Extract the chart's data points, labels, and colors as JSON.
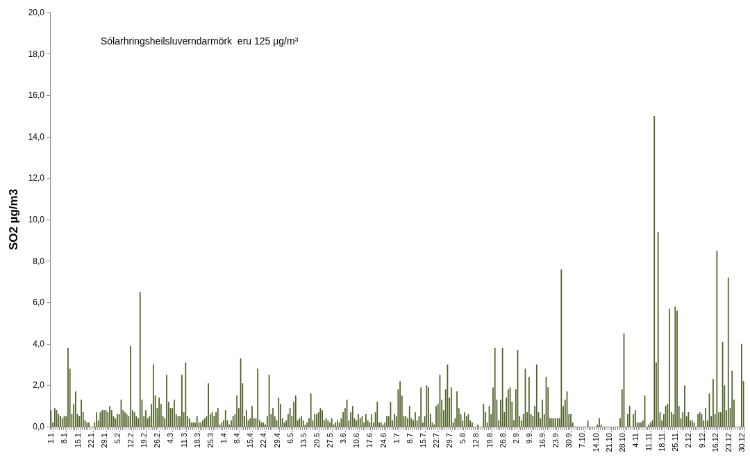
{
  "chart_data": {
    "type": "bar",
    "ylabel": "SO2 µg/m3",
    "annotations": [
      "Sólarhringsheilsluverndarmörk  eru 125 µg/m³"
    ],
    "color": "#4f6228",
    "grid": false,
    "ylim": [
      0,
      20
    ],
    "yticks": [
      {
        "value": 0,
        "label": "0,0"
      },
      {
        "value": 2,
        "label": "2,0"
      },
      {
        "value": 4,
        "label": "4,0"
      },
      {
        "value": 6,
        "label": "6,0"
      },
      {
        "value": 8,
        "label": "8,0"
      },
      {
        "value": 10,
        "label": "10,0"
      },
      {
        "value": 12,
        "label": "12,0"
      },
      {
        "value": 14,
        "label": "14,0"
      },
      {
        "value": 16,
        "label": "16,0"
      },
      {
        "value": 18,
        "label": "18,0"
      },
      {
        "value": 20,
        "label": "20,0"
      }
    ],
    "categories": [
      "1.1.",
      null,
      null,
      null,
      null,
      null,
      null,
      "8.1.",
      null,
      null,
      null,
      null,
      null,
      null,
      "15.1.",
      null,
      null,
      null,
      null,
      null,
      null,
      "22.1.",
      null,
      null,
      null,
      null,
      null,
      null,
      "29.1.",
      null,
      null,
      null,
      null,
      null,
      null,
      "5.2.",
      null,
      null,
      null,
      null,
      null,
      null,
      "12.2.",
      null,
      null,
      null,
      null,
      null,
      null,
      "19.2.",
      null,
      null,
      null,
      null,
      null,
      null,
      "26.2.",
      null,
      null,
      null,
      null,
      null,
      null,
      "4.3.",
      null,
      null,
      null,
      null,
      null,
      null,
      "11.3.",
      null,
      null,
      null,
      null,
      null,
      null,
      "18.3.",
      null,
      null,
      null,
      null,
      null,
      null,
      "25.3.",
      null,
      null,
      null,
      null,
      null,
      null,
      "1.4.",
      null,
      null,
      null,
      null,
      null,
      null,
      "8.4.",
      null,
      null,
      null,
      null,
      null,
      null,
      "15.4.",
      null,
      null,
      null,
      null,
      null,
      null,
      "22.4.",
      null,
      null,
      null,
      null,
      null,
      null,
      "29.4.",
      null,
      null,
      null,
      null,
      null,
      null,
      "6.5.",
      null,
      null,
      null,
      null,
      null,
      null,
      "13.5.",
      null,
      null,
      null,
      null,
      null,
      null,
      "20.5.",
      null,
      null,
      null,
      null,
      null,
      null,
      "27.5.",
      null,
      null,
      null,
      null,
      null,
      null,
      "3.6.",
      null,
      null,
      null,
      null,
      null,
      null,
      "10.6.",
      null,
      null,
      null,
      null,
      null,
      null,
      "17.6.",
      null,
      null,
      null,
      null,
      null,
      null,
      "24.6.",
      null,
      null,
      null,
      null,
      null,
      null,
      "1.7.",
      null,
      null,
      null,
      null,
      null,
      null,
      "8.7.",
      null,
      null,
      null,
      null,
      null,
      null,
      "15.7.",
      null,
      null,
      null,
      null,
      null,
      null,
      "22.7.",
      null,
      null,
      null,
      null,
      null,
      null,
      "29.7.",
      null,
      null,
      null,
      null,
      null,
      null,
      "5.8.",
      null,
      null,
      null,
      null,
      null,
      null,
      "12.8.",
      null,
      null,
      null,
      null,
      null,
      null,
      "19.8.",
      null,
      null,
      null,
      null,
      null,
      null,
      "26.8.",
      null,
      null,
      null,
      null,
      null,
      null,
      "2.9.",
      null,
      null,
      null,
      null,
      null,
      null,
      "9.9.",
      null,
      null,
      null,
      null,
      null,
      null,
      "16.9.",
      null,
      null,
      null,
      null,
      null,
      null,
      "23.9.",
      null,
      null,
      null,
      null,
      null,
      null,
      "30.9.",
      null,
      null,
      null,
      null,
      null,
      null,
      "7.10.",
      null,
      null,
      null,
      null,
      null,
      null,
      "14.10.",
      null,
      null,
      null,
      null,
      null,
      null,
      "21.10.",
      null,
      null,
      null,
      null,
      null,
      null,
      "28.10.",
      null,
      null,
      null,
      null,
      null,
      null,
      "4.11.",
      null,
      null,
      null,
      null,
      null,
      null,
      "11.11.",
      null,
      null,
      null,
      null,
      null,
      null,
      "18.11.",
      null,
      null,
      null,
      null,
      null,
      null,
      "25.11.",
      null,
      null,
      null,
      null,
      null,
      null,
      "2.12.",
      null,
      null,
      null,
      null,
      null,
      null,
      "9.12.",
      null,
      null,
      null,
      null,
      null,
      null,
      "16.12.",
      null,
      null,
      null,
      null,
      null,
      null,
      "23.12.",
      null,
      null,
      null,
      null,
      null,
      null,
      "30.12.",
      null
    ],
    "values": [
      0.8,
      0.2,
      0.9,
      0.8,
      0.6,
      0.5,
      0.4,
      0.5,
      0.5,
      3.8,
      2.8,
      0.6,
      1.1,
      1.7,
      0.6,
      0.5,
      1.3,
      0.7,
      0.3,
      0.2,
      0.2,
      0.0,
      0.0,
      0.2,
      0.7,
      0.3,
      0.7,
      0.8,
      0.8,
      0.8,
      0.7,
      1.0,
      0.8,
      0.5,
      0.4,
      0.6,
      0.6,
      1.3,
      0.8,
      0.7,
      0.6,
      0.5,
      3.9,
      0.8,
      0.7,
      0.5,
      0.4,
      6.5,
      1.3,
      0.5,
      0.8,
      0.4,
      0.5,
      1.1,
      3.0,
      1.5,
      0.9,
      1.4,
      1.1,
      0.5,
      0.4,
      2.5,
      1.2,
      0.9,
      0.9,
      1.3,
      0.6,
      0.5,
      0.5,
      2.5,
      0.7,
      3.1,
      0.5,
      0.4,
      0.2,
      0.2,
      0.2,
      0.5,
      0.2,
      0.2,
      0.3,
      0.4,
      0.5,
      2.1,
      0.6,
      0.7,
      0.5,
      0.7,
      0.9,
      0.1,
      0.2,
      0.3,
      0.8,
      0.3,
      0.1,
      0.3,
      0.5,
      0.6,
      1.5,
      0.9,
      3.3,
      2.1,
      0.5,
      0.8,
      0.3,
      0.4,
      1.0,
      0.4,
      0.4,
      2.8,
      0.3,
      0.2,
      0.2,
      0.1,
      0.5,
      2.5,
      0.6,
      0.9,
      0.5,
      0.3,
      1.4,
      1.1,
      0.4,
      0.2,
      0.3,
      0.6,
      0.9,
      0.5,
      1.2,
      1.5,
      0.3,
      0.4,
      0.5,
      0.3,
      0.1,
      0.2,
      0.4,
      1.6,
      0.3,
      0.6,
      0.6,
      0.7,
      0.9,
      0.8,
      0.3,
      0.4,
      0.3,
      0.2,
      0.4,
      0.1,
      0.2,
      0.3,
      0.2,
      0.4,
      0.7,
      0.9,
      1.3,
      0.3,
      0.7,
      1.0,
      0.4,
      0.3,
      0.6,
      0.4,
      0.5,
      0.2,
      0.6,
      0.3,
      0.2,
      0.6,
      0.2,
      0.7,
      1.2,
      0.2,
      0.2,
      0.1,
      0.2,
      0.5,
      0.5,
      1.2,
      0.3,
      0.6,
      0.5,
      1.8,
      2.2,
      1.5,
      0.5,
      0.5,
      0.4,
      1.0,
      0.4,
      0.3,
      0.7,
      0.3,
      0.5,
      1.9,
      0.2,
      0.5,
      2.0,
      1.9,
      0.6,
      0.2,
      0.1,
      1.0,
      1.1,
      2.5,
      1.3,
      0.8,
      1.8,
      3.0,
      1.4,
      1.9,
      0.2,
      0.4,
      1.7,
      0.9,
      0.6,
      0.3,
      0.7,
      0.5,
      0.6,
      0.3,
      0.2,
      0.0,
      0.0,
      0.1,
      0.0,
      0.0,
      1.1,
      0.7,
      0.2,
      1.0,
      0.6,
      1.9,
      3.8,
      1.3,
      0.3,
      1.3,
      3.8,
      0.7,
      1.4,
      1.8,
      1.9,
      1.2,
      0.3,
      1.8,
      3.7,
      0.5,
      0.3,
      0.6,
      2.8,
      0.7,
      2.4,
      0.6,
      0.5,
      1.0,
      3.0,
      0.7,
      0.4,
      1.3,
      0.6,
      2.4,
      1.9,
      0.4,
      0.4,
      0.4,
      0.4,
      0.4,
      0.4,
      7.6,
      1.0,
      1.3,
      1.7,
      0.6,
      0.6,
      0.2,
      0.0,
      0.0,
      0.0,
      0.0,
      0.0,
      0.0,
      0.0,
      0.3,
      0.0,
      0.0,
      0.0,
      0.0,
      0.1,
      0.4,
      0.1,
      0.0,
      0.0,
      0.0,
      0.0,
      0.0,
      0.0,
      0.0,
      0.0,
      0.0,
      0.4,
      1.8,
      4.5,
      0.0,
      0.6,
      1.0,
      0.0,
      0.6,
      0.8,
      0.2,
      0.2,
      0.2,
      0.3,
      1.5,
      0.0,
      0.1,
      0.2,
      0.3,
      15.0,
      3.1,
      9.4,
      0.7,
      0.3,
      0.6,
      1.0,
      1.1,
      5.7,
      0.7,
      0.6,
      5.8,
      5.6,
      1.0,
      0.4,
      0.7,
      2.0,
      0.5,
      0.7,
      0.3,
      0.3,
      0.2,
      0.0,
      0.6,
      0.7,
      0.6,
      0.3,
      0.9,
      0.3,
      1.6,
      0.5,
      2.3,
      0.6,
      8.5,
      0.7,
      0.7,
      4.1,
      2.0,
      0.8,
      7.2,
      0.9,
      2.7,
      1.3,
      0.0,
      0.0,
      0.0,
      4.0,
      2.2
    ]
  }
}
